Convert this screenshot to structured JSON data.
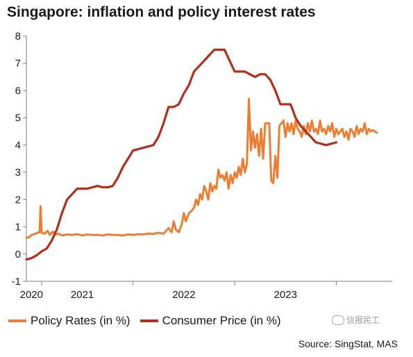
{
  "chart_data": {
    "type": "line",
    "title": "Singapore: inflation and policy interest rates",
    "xlabel": "",
    "ylabel": "",
    "ylim": [
      -1,
      8
    ],
    "yticks": [
      -1,
      0,
      1,
      2,
      3,
      4,
      5,
      6,
      7,
      8
    ],
    "xlim": [
      2019.95,
      2023.55
    ],
    "xtick_labels": [
      {
        "label": "2020",
        "x": 2020.0
      },
      {
        "label": "2021",
        "x": 2020.5
      },
      {
        "label": "2022",
        "x": 2021.5
      },
      {
        "label": "2023",
        "x": 2022.5
      }
    ],
    "x_dividers": [
      2020.1,
      2021.0,
      2022.0,
      2023.0
    ],
    "legend_position": "bottom",
    "series": [
      {
        "name": "Policy Rates (in %)",
        "color": "#ED7D31",
        "points": [
          [
            2019.95,
            0.6
          ],
          [
            2019.98,
            0.62
          ],
          [
            2020.0,
            0.7
          ],
          [
            2020.02,
            0.72
          ],
          [
            2020.04,
            0.75
          ],
          [
            2020.06,
            0.78
          ],
          [
            2020.08,
            0.8
          ],
          [
            2020.09,
            1.75
          ],
          [
            2020.1,
            0.78
          ],
          [
            2020.13,
            0.75
          ],
          [
            2020.16,
            0.85
          ],
          [
            2020.18,
            0.7
          ],
          [
            2020.21,
            0.82
          ],
          [
            2020.24,
            0.72
          ],
          [
            2020.27,
            0.75
          ],
          [
            2020.3,
            0.68
          ],
          [
            2020.35,
            0.72
          ],
          [
            2020.4,
            0.7
          ],
          [
            2020.45,
            0.73
          ],
          [
            2020.5,
            0.68
          ],
          [
            2020.55,
            0.72
          ],
          [
            2020.6,
            0.7
          ],
          [
            2020.65,
            0.7
          ],
          [
            2020.7,
            0.68
          ],
          [
            2020.75,
            0.72
          ],
          [
            2020.8,
            0.7
          ],
          [
            2020.85,
            0.7
          ],
          [
            2020.9,
            0.68
          ],
          [
            2020.95,
            0.72
          ],
          [
            2021.0,
            0.7
          ],
          [
            2021.05,
            0.73
          ],
          [
            2021.1,
            0.72
          ],
          [
            2021.15,
            0.75
          ],
          [
            2021.2,
            0.74
          ],
          [
            2021.25,
            0.78
          ],
          [
            2021.3,
            0.75
          ],
          [
            2021.35,
            0.95
          ],
          [
            2021.38,
            0.8
          ],
          [
            2021.4,
            1.2
          ],
          [
            2021.42,
            0.9
          ],
          [
            2021.45,
            0.8
          ],
          [
            2021.48,
            1.1
          ],
          [
            2021.5,
            1.5
          ],
          [
            2021.52,
            1.2
          ],
          [
            2021.55,
            1.5
          ],
          [
            2021.58,
            1.6
          ],
          [
            2021.6,
            1.7
          ],
          [
            2021.62,
            2.0
          ],
          [
            2021.64,
            1.8
          ],
          [
            2021.66,
            2.2
          ],
          [
            2021.68,
            2.0
          ],
          [
            2021.7,
            2.5
          ],
          [
            2021.72,
            2.3
          ],
          [
            2021.74,
            2.0
          ],
          [
            2021.76,
            2.6
          ],
          [
            2021.78,
            2.3
          ],
          [
            2021.8,
            2.5
          ],
          [
            2021.82,
            2.4
          ],
          [
            2021.84,
            3.1
          ],
          [
            2021.86,
            2.8
          ],
          [
            2021.88,
            2.9
          ],
          [
            2021.9,
            2.7
          ],
          [
            2021.92,
            3.0
          ],
          [
            2021.94,
            2.4
          ],
          [
            2021.96,
            2.9
          ],
          [
            2021.98,
            2.6
          ],
          [
            2022.0,
            3.0
          ],
          [
            2022.02,
            2.8
          ],
          [
            2022.04,
            3.2
          ],
          [
            2022.06,
            2.9
          ],
          [
            2022.08,
            3.5
          ],
          [
            2022.1,
            3.0
          ],
          [
            2022.12,
            3.3
          ],
          [
            2022.14,
            5.7
          ],
          [
            2022.16,
            3.8
          ],
          [
            2022.18,
            4.5
          ],
          [
            2022.2,
            3.9
          ],
          [
            2022.22,
            4.4
          ],
          [
            2022.24,
            3.6
          ],
          [
            2022.26,
            4.6
          ],
          [
            2022.28,
            3.5
          ],
          [
            2022.3,
            4.8
          ],
          [
            2022.32,
            4.8
          ],
          [
            2022.34,
            4.8
          ],
          [
            2022.36,
            2.7
          ],
          [
            2022.38,
            2.6
          ],
          [
            2022.4,
            3.6
          ],
          [
            2022.42,
            2.8
          ],
          [
            2022.44,
            4.7
          ],
          [
            2022.46,
            4.8
          ],
          [
            2022.48,
            4.9
          ],
          [
            2022.5,
            4.3
          ],
          [
            2022.52,
            4.8
          ],
          [
            2022.54,
            4.5
          ],
          [
            2022.56,
            4.8
          ],
          [
            2022.58,
            4.4
          ],
          [
            2022.6,
            4.9
          ],
          [
            2022.62,
            4.6
          ],
          [
            2022.64,
            4.5
          ],
          [
            2022.66,
            4.3
          ],
          [
            2022.68,
            4.7
          ],
          [
            2022.7,
            4.4
          ],
          [
            2022.72,
            4.8
          ],
          [
            2022.74,
            4.5
          ],
          [
            2022.76,
            4.9
          ],
          [
            2022.78,
            4.5
          ],
          [
            2022.8,
            4.6
          ],
          [
            2022.82,
            4.4
          ],
          [
            2022.84,
            4.9
          ],
          [
            2022.86,
            4.5
          ],
          [
            2022.88,
            4.6
          ],
          [
            2022.9,
            4.4
          ],
          [
            2022.92,
            4.7
          ],
          [
            2022.94,
            4.5
          ],
          [
            2022.96,
            4.8
          ],
          [
            2022.98,
            4.3
          ],
          [
            2023.0,
            4.6
          ],
          [
            2023.02,
            4.4
          ],
          [
            2023.04,
            4.5
          ],
          [
            2023.06,
            4.6
          ],
          [
            2023.08,
            4.3
          ],
          [
            2023.1,
            4.5
          ],
          [
            2023.12,
            4.2
          ],
          [
            2023.14,
            4.6
          ],
          [
            2023.16,
            4.5
          ],
          [
            2023.18,
            4.3
          ],
          [
            2023.2,
            4.7
          ],
          [
            2023.22,
            4.4
          ],
          [
            2023.24,
            4.6
          ],
          [
            2023.26,
            4.5
          ],
          [
            2023.28,
            4.8
          ],
          [
            2023.3,
            4.4
          ],
          [
            2023.32,
            4.6
          ],
          [
            2023.34,
            4.5
          ],
          [
            2023.36,
            4.55
          ],
          [
            2023.38,
            4.5
          ],
          [
            2023.4,
            4.45
          ]
        ]
      },
      {
        "name": "Consumer Price (in %)",
        "color": "#B22E1B",
        "points": [
          [
            2019.95,
            -0.2
          ],
          [
            2020.0,
            -0.15
          ],
          [
            2020.05,
            -0.05
          ],
          [
            2020.1,
            0.1
          ],
          [
            2020.15,
            0.2
          ],
          [
            2020.2,
            0.5
          ],
          [
            2020.25,
            0.9
          ],
          [
            2020.3,
            1.5
          ],
          [
            2020.35,
            2.0
          ],
          [
            2020.4,
            2.2
          ],
          [
            2020.45,
            2.4
          ],
          [
            2020.5,
            2.4
          ],
          [
            2020.55,
            2.4
          ],
          [
            2020.6,
            2.45
          ],
          [
            2020.65,
            2.5
          ],
          [
            2020.7,
            2.45
          ],
          [
            2020.75,
            2.45
          ],
          [
            2020.8,
            2.5
          ],
          [
            2020.85,
            2.8
          ],
          [
            2020.9,
            3.2
          ],
          [
            2020.95,
            3.5
          ],
          [
            2021.0,
            3.8
          ],
          [
            2021.05,
            3.85
          ],
          [
            2021.1,
            3.9
          ],
          [
            2021.15,
            3.95
          ],
          [
            2021.2,
            4.0
          ],
          [
            2021.25,
            4.3
          ],
          [
            2021.3,
            4.8
          ],
          [
            2021.35,
            5.4
          ],
          [
            2021.4,
            5.4
          ],
          [
            2021.45,
            5.5
          ],
          [
            2021.5,
            5.9
          ],
          [
            2021.55,
            6.2
          ],
          [
            2021.6,
            6.7
          ],
          [
            2021.65,
            6.9
          ],
          [
            2021.7,
            7.1
          ],
          [
            2021.75,
            7.3
          ],
          [
            2021.8,
            7.5
          ],
          [
            2021.85,
            7.5
          ],
          [
            2021.9,
            7.5
          ],
          [
            2021.95,
            7.1
          ],
          [
            2022.0,
            6.7
          ],
          [
            2022.05,
            6.7
          ],
          [
            2022.1,
            6.7
          ],
          [
            2022.15,
            6.6
          ],
          [
            2022.2,
            6.5
          ],
          [
            2022.25,
            6.6
          ],
          [
            2022.3,
            6.6
          ],
          [
            2022.35,
            6.4
          ],
          [
            2022.4,
            6.0
          ],
          [
            2022.45,
            5.5
          ],
          [
            2022.5,
            5.5
          ],
          [
            2022.55,
            5.5
          ],
          [
            2022.6,
            5.0
          ],
          [
            2022.65,
            4.7
          ],
          [
            2022.7,
            4.5
          ],
          [
            2022.75,
            4.3
          ],
          [
            2022.8,
            4.1
          ],
          [
            2022.85,
            4.05
          ],
          [
            2022.9,
            4.0
          ],
          [
            2022.95,
            4.05
          ],
          [
            2023.0,
            4.1
          ]
        ]
      }
    ]
  },
  "legend": {
    "policy_label": "Policy Rates (in %)",
    "cpi_label": "Consumer Price (in %)"
  },
  "source": "Source: SingStat, MAS",
  "watermark": "信报民工",
  "colors": {
    "policy": "#ED7D31",
    "cpi": "#B22E1B",
    "axis": "#7f7f7f"
  }
}
